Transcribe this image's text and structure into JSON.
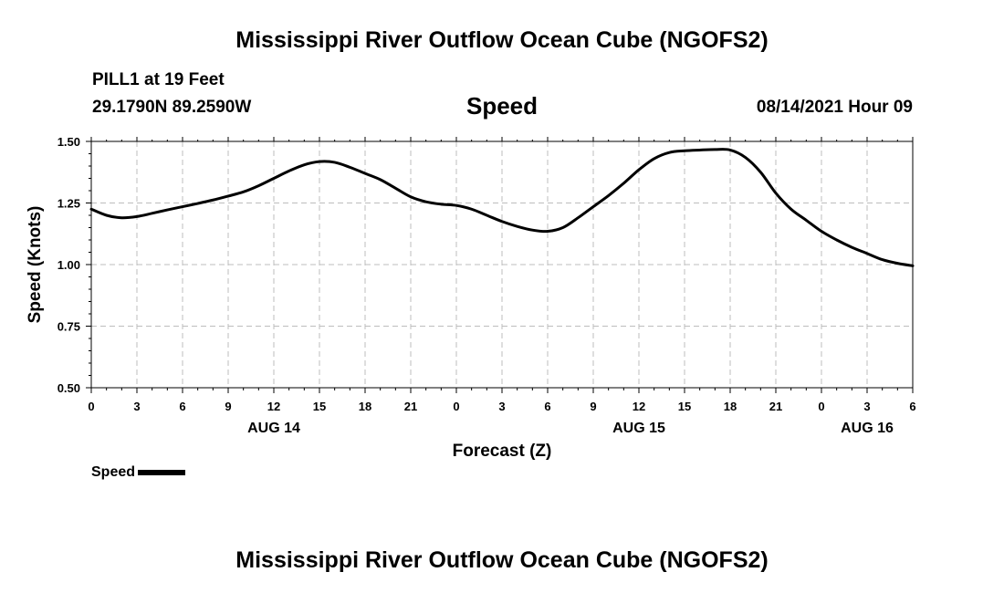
{
  "page": {
    "title": "Mississippi River Outflow Ocean Cube (NGOFS2)",
    "footer_title": "Mississippi River Outflow Ocean Cube (NGOFS2)",
    "station": "PILL1 at 19 Feet",
    "coords": "29.1790N  89.2590W",
    "variable": "Speed",
    "datetime": "08/14/2021 Hour 09"
  },
  "chart_data": {
    "type": "line",
    "title": "Speed",
    "xlabel": "Forecast (Z)",
    "ylabel": "Speed (Knots)",
    "ylim": [
      0.5,
      1.5
    ],
    "xlim": [
      0,
      54
    ],
    "y_ticks": [
      "0.50",
      "0.75",
      "1.00",
      "1.25",
      "1.50"
    ],
    "y_tick_values": [
      0.5,
      0.75,
      1.0,
      1.25,
      1.5
    ],
    "x_tick_labels": [
      "0",
      "3",
      "6",
      "9",
      "12",
      "15",
      "18",
      "21",
      "0",
      "3",
      "6",
      "9",
      "12",
      "15",
      "18",
      "21",
      "0",
      "3",
      "6"
    ],
    "day_labels": [
      {
        "text": "AUG 14",
        "x": 12
      },
      {
        "text": "AUG 15",
        "x": 36
      },
      {
        "text": "AUG 16",
        "x": 51
      }
    ],
    "grid": true,
    "legend": "bottom-left",
    "line_color": "#000000",
    "series": [
      {
        "name": "Speed",
        "x": [
          0,
          1,
          2,
          3,
          4,
          5,
          6,
          7,
          8,
          9,
          10,
          11,
          12,
          13,
          14,
          15,
          16,
          17,
          18,
          19,
          20,
          21,
          22,
          23,
          24,
          25,
          26,
          27,
          28,
          29,
          30,
          31,
          32,
          33,
          34,
          35,
          36,
          37,
          38,
          39,
          40,
          41,
          42,
          43,
          44,
          45,
          46,
          47,
          48,
          49,
          50,
          51,
          52,
          53,
          54
        ],
        "values": [
          1.225,
          1.2,
          1.19,
          1.195,
          1.208,
          1.222,
          1.235,
          1.248,
          1.262,
          1.278,
          1.295,
          1.32,
          1.35,
          1.38,
          1.405,
          1.418,
          1.415,
          1.395,
          1.37,
          1.345,
          1.31,
          1.275,
          1.255,
          1.245,
          1.24,
          1.225,
          1.2,
          1.175,
          1.155,
          1.14,
          1.135,
          1.15,
          1.19,
          1.235,
          1.28,
          1.33,
          1.385,
          1.43,
          1.455,
          1.462,
          1.465,
          1.467,
          1.465,
          1.435,
          1.375,
          1.29,
          1.225,
          1.18,
          1.135,
          1.1,
          1.07,
          1.045,
          1.02,
          1.005,
          0.995
        ]
      }
    ]
  },
  "legend": {
    "label": "Speed"
  }
}
